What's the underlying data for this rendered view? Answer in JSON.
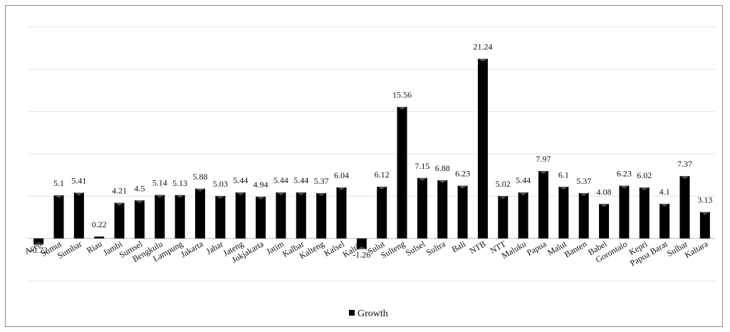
{
  "chart_data": {
    "type": "bar",
    "categories": [
      "Aceh",
      "Sumut",
      "Sumbar",
      "Riau",
      "Jambi",
      "Sumsel",
      "Bengkulu",
      "Lampung",
      "Jakarta",
      "Jabar",
      "Jateng",
      "Jokjakarta",
      "Jatim",
      "Kalbar",
      "Kalteng",
      "Kalsel",
      "Kaltim",
      "Sulut",
      "Sulteng",
      "Sulsel",
      "Sultra",
      "Bali",
      "NTB",
      "NTT",
      "Maluku",
      "Papua",
      "Malut",
      "Banten",
      "Babel",
      "Gorontalo",
      "Kepri",
      "Papua Barat",
      "Sulbar",
      "Kaltara"
    ],
    "series": [
      {
        "name": "Growth",
        "values": [
          -0.72,
          5.1,
          5.41,
          0.22,
          4.21,
          4.5,
          5.14,
          5.13,
          5.88,
          5.03,
          5.44,
          4.94,
          5.44,
          5.44,
          5.37,
          6.04,
          -1.26,
          6.12,
          15.56,
          7.15,
          6.88,
          6.23,
          21.24,
          5.02,
          5.44,
          7.97,
          6.1,
          5.37,
          4.08,
          6.23,
          6.02,
          4.1,
          7.37,
          3.13
        ],
        "labels": [
          "-0.72",
          "5.1",
          "5.41",
          "0.22",
          "4.21",
          "4.5",
          "5.14",
          "5.13",
          "5.88",
          "5.03",
          "5.44",
          "4.94",
          "5.44",
          "5.44",
          "5.37",
          "6.04",
          "-1.26",
          "6.12",
          "15.56",
          "7.15",
          "6.88",
          "6.23",
          "21.24",
          "5.02",
          "5.44",
          "7.97",
          "6.1",
          "5.37",
          "4.08",
          "6.23",
          "6.02",
          "4.1",
          "7.37",
          "3.13"
        ],
        "color": "#000000"
      }
    ],
    "ylim": [
      -5,
      25
    ],
    "grid": true,
    "legend": "bottom",
    "title": "",
    "xlabel": "",
    "ylabel": ""
  }
}
